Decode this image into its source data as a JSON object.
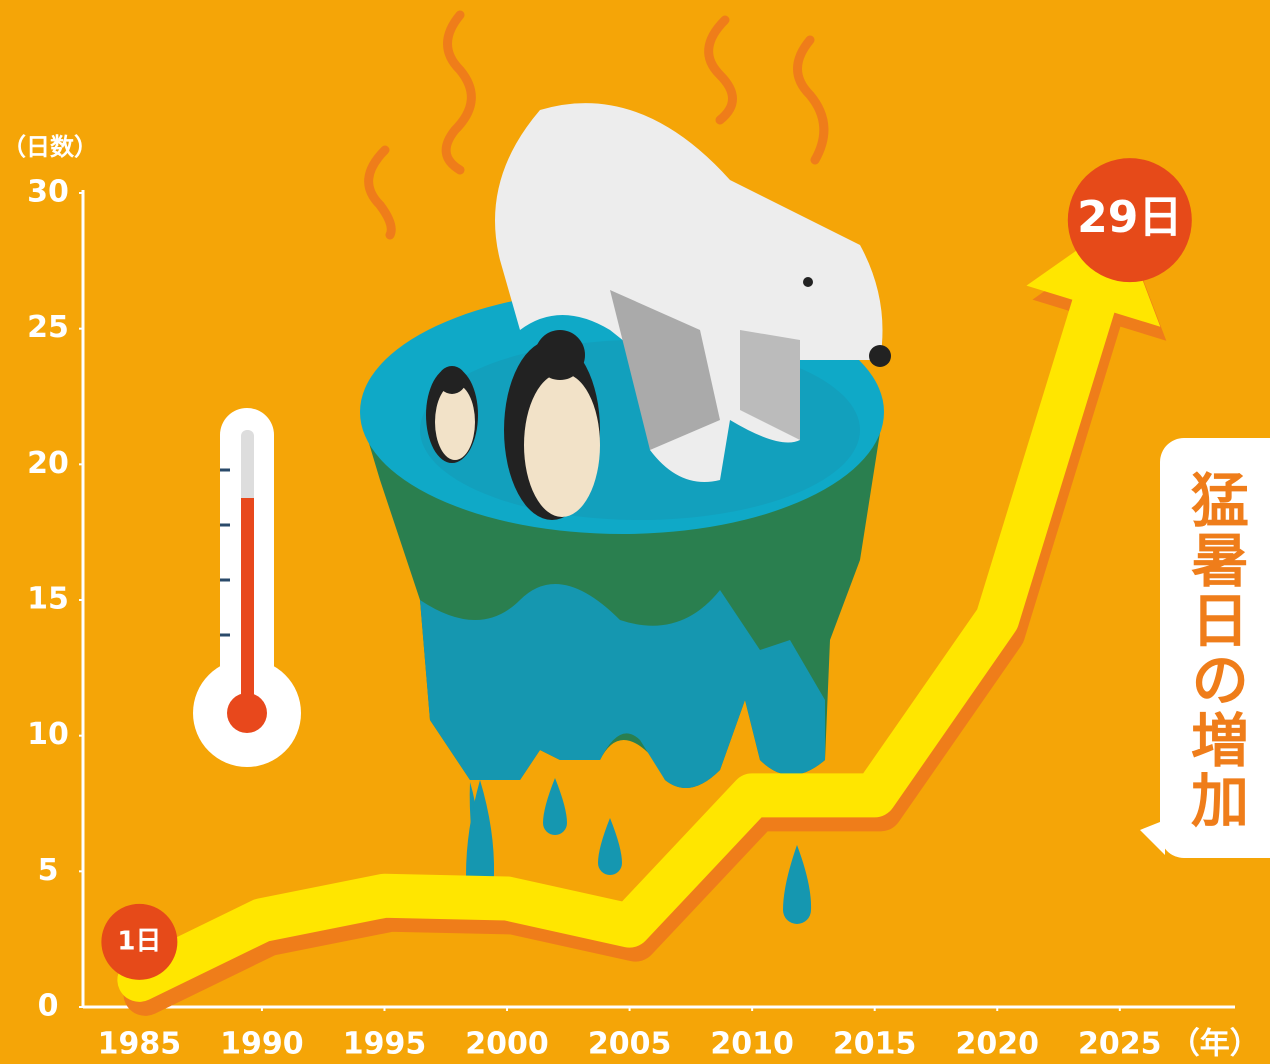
{
  "chart_data": {
    "type": "line",
    "title": "猛暑日の増加",
    "y_label": "（日数）",
    "x_label": "（年）",
    "x": [
      1985,
      1990,
      1995,
      2000,
      2005,
      2010,
      2015,
      2020,
      2025
    ],
    "values": [
      1,
      3.2,
      4.1,
      4,
      3,
      7.8,
      7.8,
      14.3,
      29
    ],
    "value_labels": [
      "1日",
      null,
      null,
      null,
      null,
      null,
      null,
      null,
      "29日"
    ],
    "color": "#ffe600",
    "xlim": [
      1982.7,
      2029.7
    ],
    "xticks": [
      1985,
      1990,
      1995,
      2000,
      2005,
      2010,
      2015,
      2020,
      2025
    ],
    "ylim": [
      0,
      30
    ],
    "yticks": [
      0,
      5,
      10,
      15,
      20,
      25,
      30
    ]
  }
}
